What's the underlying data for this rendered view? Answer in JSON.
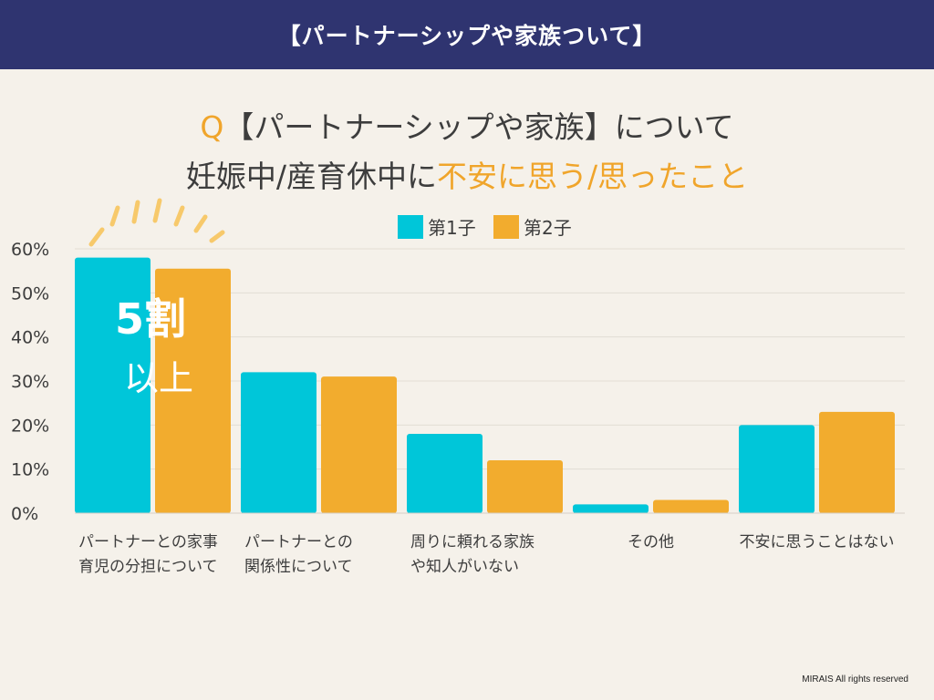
{
  "header": {
    "title": "【パートナーシップや家族ついて】"
  },
  "question": {
    "prefix": "Q",
    "line1": "【パートナーシップや家族】について",
    "line2_plain": "妊娠中/産育休中に",
    "line2_highlight": "不安に思う/思ったこと"
  },
  "colors": {
    "first_child": "#00c6d9",
    "second_child": "#f2ac2e",
    "accent": "#f0a52b",
    "header_bg": "#2f3470",
    "burst": "#f7c96b"
  },
  "chart_data": {
    "type": "bar",
    "categories": [
      [
        "パートナーとの家事",
        "育児の分担について"
      ],
      [
        "パートナーとの",
        "関係性について"
      ],
      [
        "周りに頼れる家族",
        "や知人がいない"
      ],
      [
        "その他"
      ],
      [
        "不安に思うことはない"
      ]
    ],
    "series": [
      {
        "name": "第1子",
        "values": [
          58,
          32,
          18,
          2,
          20
        ]
      },
      {
        "name": "第2子",
        "values": [
          55.5,
          31,
          12,
          3,
          23
        ]
      }
    ],
    "ylim": [
      0,
      60
    ],
    "yticks": [
      0,
      10,
      20,
      30,
      40,
      50,
      60
    ],
    "ytick_labels": [
      "0%",
      "10%",
      "20%",
      "30%",
      "40%",
      "50%",
      "60%"
    ],
    "legend_position": "top-center",
    "grid": true,
    "annotation": {
      "main": "5割",
      "sub": "以上"
    }
  },
  "footer": {
    "credit": "MIRAIS All rights reserved"
  }
}
